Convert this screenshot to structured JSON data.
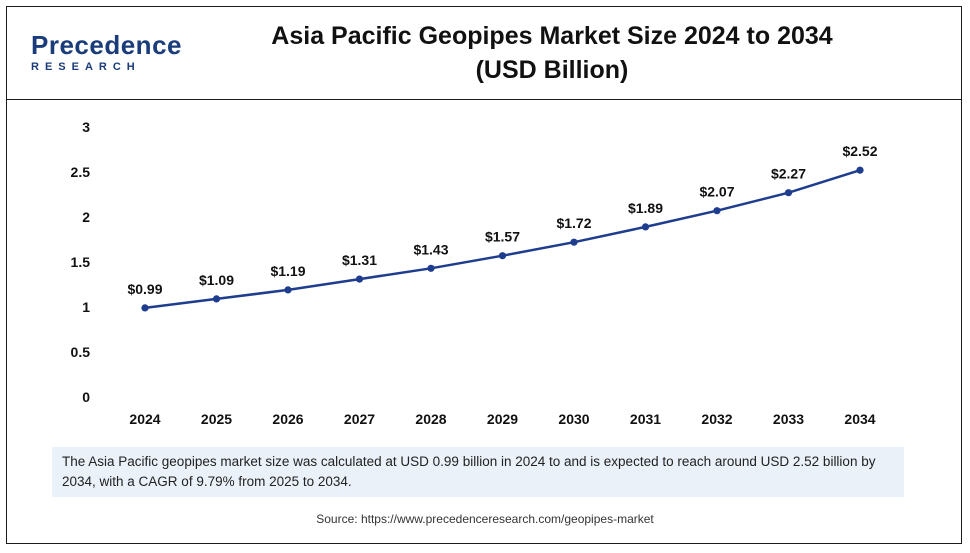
{
  "logo": {
    "top": "Precedence",
    "bottom": "RESEARCH"
  },
  "title": "Asia Pacific Geopipes Market Size 2024 to 2034",
  "subtitle": "(USD Billion)",
  "note": "The Asia Pacific geopipes market size was calculated at USD 0.99 billion in 2024 to and is expected to reach around USD 2.52 billion by 2034, with a CAGR of 9.79% from 2025 to 2034.",
  "source": "Source: https://www.precedenceresearch.com/geopipes-market",
  "colors": {
    "line": "#1f3d8f",
    "text": "#111111",
    "grid": "#e2e2e2",
    "brand": "#1a3c7a"
  },
  "chart_data": {
    "type": "line",
    "title": "Asia Pacific Geopipes Market Size 2024 to 2034",
    "x": [
      "2024",
      "2025",
      "2026",
      "2027",
      "2028",
      "2029",
      "2030",
      "2031",
      "2032",
      "2033",
      "2034"
    ],
    "series": [
      {
        "values": [
          0.99,
          1.09,
          1.19,
          1.31,
          1.43,
          1.57,
          1.72,
          1.89,
          2.07,
          2.27,
          2.52
        ],
        "labels": [
          "$0.99",
          "$1.09",
          "$1.19",
          "$1.31",
          "$1.43",
          "$1.57",
          "$1.72",
          "$1.89",
          "$2.07",
          "$2.27",
          "$2.52"
        ]
      }
    ],
    "yticks": [
      "0",
      "0.5",
      "1",
      "1.5",
      "2",
      "2.5",
      "3"
    ],
    "ylim": [
      0,
      3
    ],
    "xlabel": "",
    "ylabel": "",
    "grid": false,
    "legend": "none"
  }
}
